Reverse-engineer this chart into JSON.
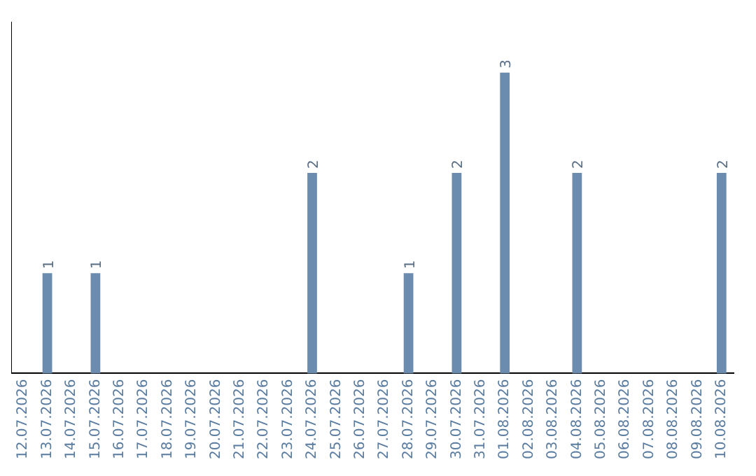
{
  "chart_data": {
    "type": "bar",
    "categories": [
      "12.07.2026",
      "13.07.2026",
      "14.07.2026",
      "15.07.2026",
      "16.07.2026",
      "17.07.2026",
      "18.07.2026",
      "19.07.2026",
      "20.07.2026",
      "21.07.2026",
      "22.07.2026",
      "23.07.2026",
      "24.07.2026",
      "25.07.2026",
      "26.07.2026",
      "27.07.2026",
      "28.07.2026",
      "29.07.2026",
      "30.07.2026",
      "31.07.2026",
      "01.08.2026",
      "02.08.2026",
      "03.08.2026",
      "04.08.2026",
      "05.08.2026",
      "06.08.2026",
      "07.08.2026",
      "08.08.2026",
      "09.08.2026",
      "10.08.2026"
    ],
    "values": [
      0,
      1,
      0,
      1,
      0,
      0,
      0,
      0,
      0,
      0,
      0,
      0,
      2,
      0,
      0,
      0,
      1,
      0,
      2,
      0,
      3,
      0,
      0,
      2,
      0,
      0,
      0,
      0,
      0,
      2
    ],
    "value_labels": [
      null,
      "1",
      null,
      "1",
      null,
      null,
      null,
      null,
      null,
      null,
      null,
      null,
      "2",
      null,
      null,
      null,
      "1",
      null,
      "2",
      null,
      "3",
      null,
      null,
      "2",
      null,
      null,
      null,
      null,
      null,
      "2"
    ],
    "color": "#6b8cae",
    "tick_labels": "x",
    "grid": false,
    "legend": false
  }
}
